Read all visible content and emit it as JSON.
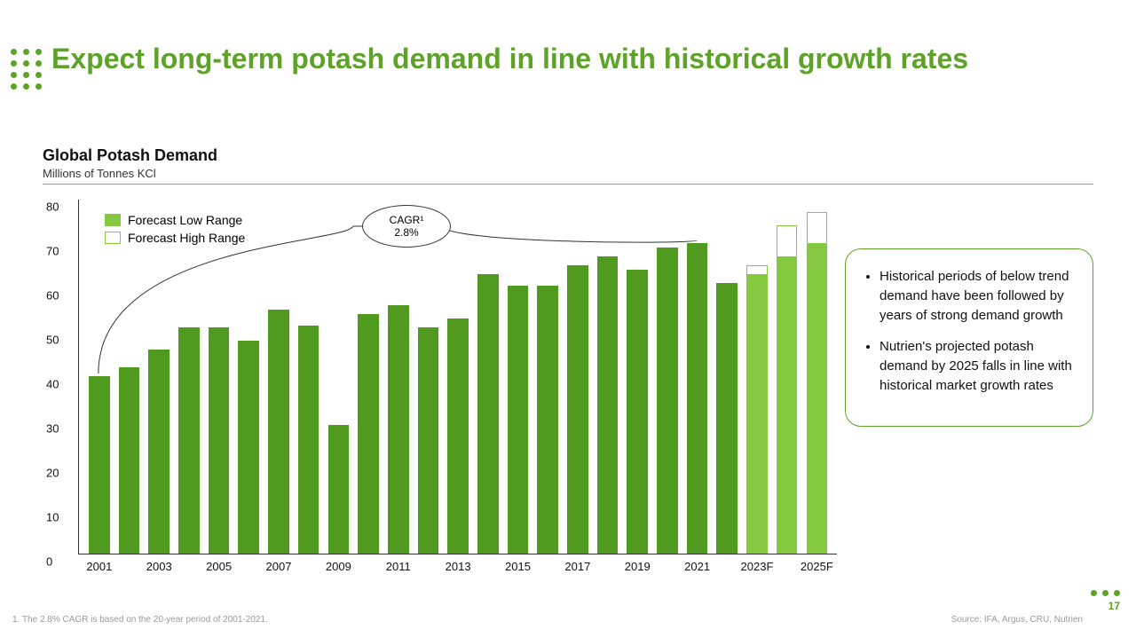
{
  "accent_color": "#5ea22a",
  "title": "Expect long-term potash demand in line with historical growth rates",
  "chart": {
    "type": "bar",
    "title": "Global Potash Demand",
    "subtitle": "Millions of Tonnes KCl",
    "ymax": 80,
    "ytick_step": 10,
    "historical_color": "#4f9a1f",
    "forecast_low_color": "#84c940",
    "forecast_high_color": "#ffffff",
    "forecast_high_border": "#84c940",
    "years": [
      "2001",
      "2002",
      "2003",
      "2004",
      "2005",
      "2006",
      "2007",
      "2008",
      "2009",
      "2010",
      "2011",
      "2012",
      "2013",
      "2014",
      "2015",
      "2016",
      "2017",
      "2018",
      "2019",
      "2020",
      "2021",
      "2022",
      "2023F",
      "2024F",
      "2025F"
    ],
    "values_low": [
      40,
      42,
      46,
      51,
      51,
      48,
      55,
      51.5,
      29,
      54,
      56,
      51,
      53,
      63,
      60.5,
      60.5,
      65,
      67,
      64,
      69,
      70,
      61,
      63,
      67,
      70
    ],
    "values_high": [
      40,
      42,
      46,
      51,
      51,
      48,
      55,
      51.5,
      29,
      54,
      56,
      51,
      53,
      63,
      60.5,
      60.5,
      65,
      67,
      64,
      69,
      70,
      61,
      65,
      74,
      77
    ],
    "forecast_start_index": 22,
    "xlabel_indices": [
      0,
      2,
      4,
      6,
      8,
      10,
      12,
      14,
      16,
      18,
      20,
      22,
      24
    ],
    "legend": {
      "low": "Forecast Low Range",
      "high": "Forecast High Range"
    },
    "cagr": {
      "label": "CAGR¹",
      "value": "2.8%"
    }
  },
  "callout": {
    "bullet1": "Historical periods of below trend demand have been followed by years of strong demand growth",
    "bullet2": "Nutrien's projected potash demand by 2025 falls in line with historical market growth rates"
  },
  "footnote": "1. The 2.8% CAGR is based on the 20-year period of 2001-2021.",
  "source": "Source: IFA, Argus, CRU, Nutrien",
  "page_number": "17"
}
